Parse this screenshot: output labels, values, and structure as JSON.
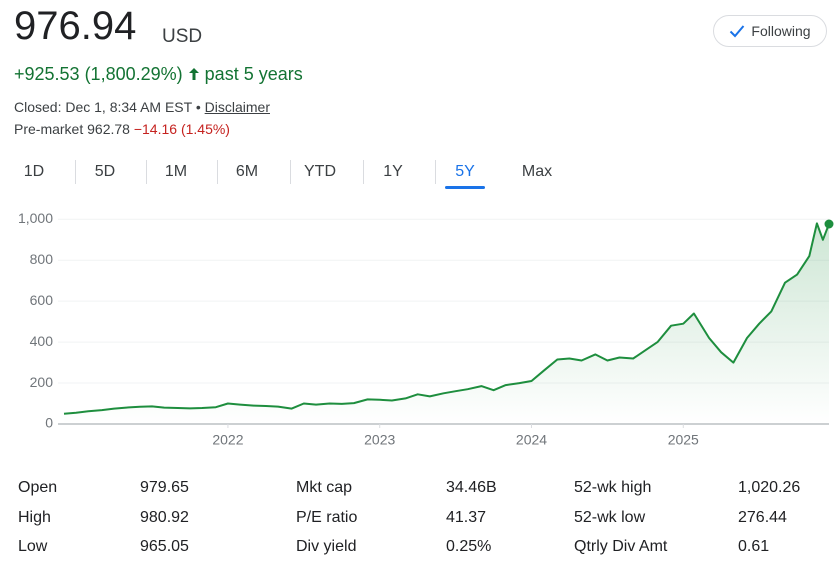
{
  "header": {
    "price": "976.94",
    "currency": "USD",
    "change": "+925.53 (1,800.29%)",
    "period": "past 5 years",
    "closed": "Closed: Dec 1, 8:34 AM EST",
    "separator": "•",
    "disclaimer": "Disclaimer",
    "premarket_label": "Pre-market",
    "premarket_price": "962.78",
    "premarket_change": "−14.16 (1.45%)"
  },
  "follow_button": "Following",
  "tabs": [
    "1D",
    "5D",
    "1M",
    "6M",
    "YTD",
    "1Y",
    "5Y",
    "Max"
  ],
  "active_tab": 6,
  "chart_data": {
    "type": "line",
    "color": "#1e8e3e",
    "grid": true,
    "x": [
      2020.92,
      2021.0,
      2021.08,
      2021.17,
      2021.25,
      2021.33,
      2021.42,
      2021.5,
      2021.58,
      2021.67,
      2021.75,
      2021.83,
      2021.92,
      2022.0,
      2022.08,
      2022.17,
      2022.25,
      2022.33,
      2022.42,
      2022.5,
      2022.58,
      2022.67,
      2022.75,
      2022.83,
      2022.92,
      2023.0,
      2023.08,
      2023.17,
      2023.25,
      2023.33,
      2023.42,
      2023.5,
      2023.58,
      2023.67,
      2023.75,
      2023.83,
      2023.92,
      2024.0,
      2024.08,
      2024.17,
      2024.25,
      2024.33,
      2024.42,
      2024.5,
      2024.58,
      2024.67,
      2024.75,
      2024.83,
      2024.92,
      2025.0,
      2025.07,
      2025.17,
      2025.25,
      2025.33,
      2025.42,
      2025.5,
      2025.58,
      2025.67,
      2025.75,
      2025.83,
      2025.88,
      2025.92,
      2025.96
    ],
    "values": [
      50,
      55,
      62,
      68,
      75,
      80,
      84,
      86,
      80,
      78,
      76,
      78,
      82,
      100,
      95,
      90,
      88,
      85,
      75,
      100,
      95,
      100,
      98,
      102,
      120,
      118,
      115,
      125,
      145,
      135,
      150,
      160,
      170,
      185,
      165,
      190,
      200,
      210,
      260,
      315,
      320,
      310,
      340,
      310,
      325,
      320,
      360,
      400,
      480,
      490,
      540,
      420,
      350,
      300,
      420,
      490,
      550,
      690,
      730,
      820,
      980,
      900,
      976.94
    ],
    "xlim": [
      2020.92,
      2025.96
    ],
    "xticks": [
      2022,
      2023,
      2024,
      2025
    ],
    "ylim": [
      0,
      1060
    ],
    "yticks": [
      0,
      200,
      400,
      600,
      800,
      {
        "value": 1000,
        "label": "1,000"
      }
    ]
  },
  "stats": [
    [
      [
        "Open",
        "979.65"
      ],
      [
        "Mkt cap",
        "34.46B"
      ],
      [
        "52-wk high",
        "1,020.26"
      ]
    ],
    [
      [
        "High",
        "980.92"
      ],
      [
        "P/E ratio",
        "41.37"
      ],
      [
        "52-wk low",
        "276.44"
      ]
    ],
    [
      [
        "Low",
        "965.05"
      ],
      [
        "Div yield",
        "0.25%"
      ],
      [
        "Qtrly Div Amt",
        "0.61"
      ]
    ]
  ]
}
